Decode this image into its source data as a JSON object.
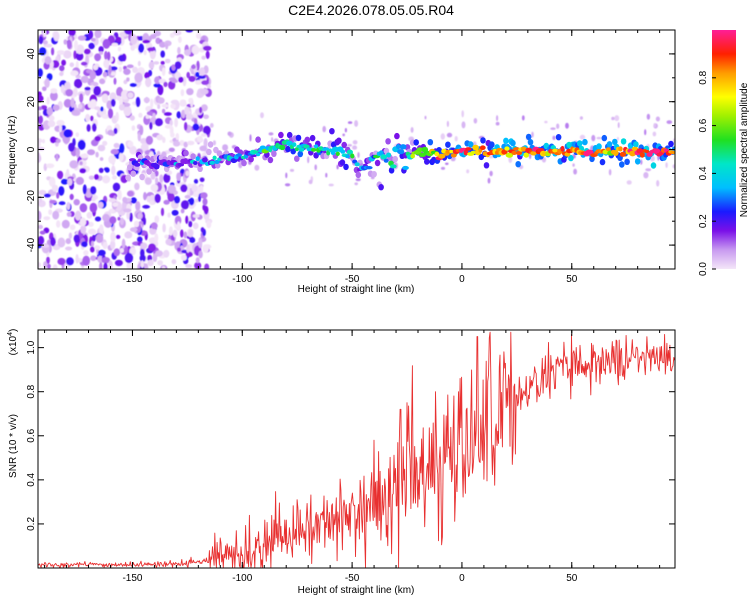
{
  "title": "C2E4.2026.078.05.05.R04",
  "chart_data": [
    {
      "type": "heatmap",
      "name": "spectrogram",
      "xlabel": "Height of straight line (km)",
      "ylabel": "Frequency (Hz)",
      "xlim": [
        -193,
        97
      ],
      "ylim": [
        -50,
        50
      ],
      "x_ticks": [
        -150,
        -100,
        -50,
        0,
        50
      ],
      "x_tick_labels": [
        "-150",
        "-100",
        "-50",
        "0",
        "50"
      ],
      "y_ticks": [
        -40,
        -20,
        0,
        20,
        40
      ],
      "y_tick_labels": [
        "-40",
        "-20",
        "0",
        "20",
        "40"
      ],
      "ridge": {
        "description_of_trend": "frequency ridge near 0 Hz",
        "x": [
          -150,
          -120,
          -100,
          -90,
          -80,
          -70,
          -60,
          -50,
          -45,
          -40,
          -35,
          -30,
          -20,
          -10,
          0,
          10,
          30,
          50,
          70,
          90,
          97
        ],
        "y": [
          -6,
          -5,
          -3,
          0,
          2,
          1,
          -1,
          -3,
          -7,
          -5,
          -3,
          -2,
          -1,
          -2,
          0,
          -1,
          -1,
          -1,
          -1,
          -1,
          -1
        ],
        "amplitude": [
          0.15,
          0.2,
          0.35,
          0.4,
          0.45,
          0.45,
          0.45,
          0.4,
          0.3,
          0.35,
          0.4,
          0.4,
          0.5,
          0.75,
          0.9,
          0.8,
          0.85,
          0.9,
          0.85,
          0.9,
          0.85
        ]
      },
      "noise_region_x": [
        -193,
        -115
      ]
    },
    {
      "type": "colorbar",
      "label": "Normalized spectral amplitude",
      "range": [
        0,
        1
      ],
      "ticks": [
        0.0,
        0.2,
        0.4,
        0.6,
        0.8
      ],
      "tick_labels": [
        "0.0",
        "0.2",
        "0.4",
        "0.6",
        "0.8"
      ]
    },
    {
      "type": "line",
      "name": "snr",
      "xlabel": "Height of straight line (km)",
      "ylabel": "SNR (10 * v/v)",
      "y_multiplier_label": "(x10",
      "y_multiplier_exp": "4",
      "y_multiplier_close": ")",
      "xlim": [
        -193,
        97
      ],
      "ylim": [
        0,
        1.08
      ],
      "x_ticks": [
        -150,
        -100,
        -50,
        0,
        50
      ],
      "x_tick_labels": [
        "-150",
        "-100",
        "-50",
        "0",
        "50"
      ],
      "y_ticks": [
        0.2,
        0.4,
        0.6,
        0.8,
        1.0
      ],
      "y_tick_labels": [
        "0.2",
        "0.4",
        "0.6",
        "0.8",
        "1.0"
      ],
      "color": "#e83030",
      "trend": {
        "x": [
          -193,
          -150,
          -125,
          -110,
          -100,
          -90,
          -80,
          -70,
          -60,
          -50,
          -40,
          -30,
          -20,
          -10,
          0,
          10,
          20,
          30,
          40,
          50,
          60,
          70,
          80,
          97
        ],
        "y": [
          0.015,
          0.015,
          0.02,
          0.04,
          0.06,
          0.08,
          0.12,
          0.17,
          0.2,
          0.24,
          0.28,
          0.32,
          0.38,
          0.45,
          0.55,
          0.62,
          0.72,
          0.82,
          0.88,
          0.92,
          0.93,
          0.94,
          0.95,
          0.95
        ]
      },
      "peaks": [
        {
          "x": -75,
          "y": 0.31
        },
        {
          "x": -50,
          "y": 0.34
        },
        {
          "x": -40,
          "y": 0.58
        },
        {
          "x": -28,
          "y": 0.72
        },
        {
          "x": -25,
          "y": 0.75
        },
        {
          "x": -12,
          "y": 0.8
        },
        {
          "x": 7,
          "y": 1.05
        },
        {
          "x": 13,
          "y": 0.88
        },
        {
          "x": 50,
          "y": 1.06
        }
      ]
    }
  ]
}
